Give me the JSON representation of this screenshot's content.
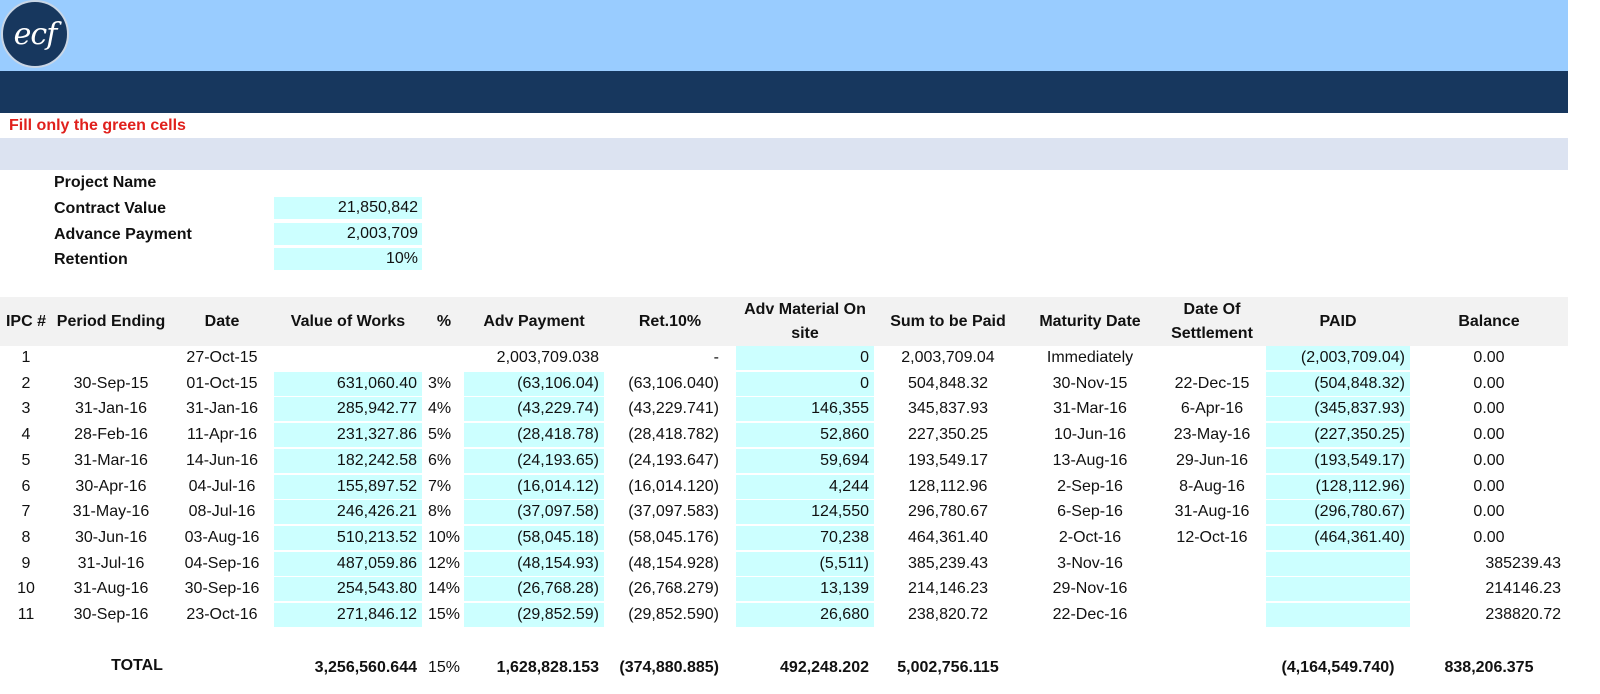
{
  "header": {
    "logo_text": "ecf"
  },
  "instruction": "Fill only the green cells",
  "project": {
    "project_name_label": "Project Name",
    "contract_value_label": "Contract Value",
    "contract_value": "21,850,842",
    "advance_payment_label": "Advance Payment",
    "advance_payment": "2,003,709",
    "retention_label": "Retention",
    "retention": "10%"
  },
  "table": {
    "headers": {
      "ipc": "IPC #",
      "period_ending": "Period Ending",
      "date": "Date",
      "value_of_works": "Value of Works",
      "pct": "%",
      "adv_payment": "Adv Payment",
      "retention": "Ret.10%",
      "adv_material": "Adv Material On site",
      "sum_to_be_paid": "Sum to be Paid",
      "maturity_date": "Maturity Date",
      "date_of_settlement": "Date Of Settlement",
      "paid": "PAID",
      "balance": "Balance"
    },
    "rows": [
      {
        "ipc": "1",
        "period": "",
        "date": "27-Oct-15",
        "value": "",
        "pct": "",
        "adv": "2,003,709.038",
        "ret": "-",
        "mat": "0",
        "sum": "2,003,709.04",
        "maturity": "Immediately",
        "settle": "",
        "paid": "(2,003,709.04)",
        "balance": "0.00"
      },
      {
        "ipc": "2",
        "period": "30-Sep-15",
        "date": "01-Oct-15",
        "value": "631,060.40",
        "pct": "3%",
        "adv": "(63,106.04)",
        "ret": "(63,106.040)",
        "mat": "0",
        "sum": "504,848.32",
        "maturity": "30-Nov-15",
        "settle": "22-Dec-15",
        "paid": "(504,848.32)",
        "balance": "0.00"
      },
      {
        "ipc": "3",
        "period": "31-Jan-16",
        "date": "31-Jan-16",
        "value": "285,942.77",
        "pct": "4%",
        "adv": "(43,229.74)",
        "ret": "(43,229.741)",
        "mat": "146,355",
        "sum": "345,837.93",
        "maturity": "31-Mar-16",
        "settle": "6-Apr-16",
        "paid": "(345,837.93)",
        "balance": "0.00"
      },
      {
        "ipc": "4",
        "period": "28-Feb-16",
        "date": "11-Apr-16",
        "value": "231,327.86",
        "pct": "5%",
        "adv": "(28,418.78)",
        "ret": "(28,418.782)",
        "mat": "52,860",
        "sum": "227,350.25",
        "maturity": "10-Jun-16",
        "settle": "23-May-16",
        "paid": "(227,350.25)",
        "balance": "0.00"
      },
      {
        "ipc": "5",
        "period": "31-Mar-16",
        "date": "14-Jun-16",
        "value": "182,242.58",
        "pct": "6%",
        "adv": "(24,193.65)",
        "ret": "(24,193.647)",
        "mat": "59,694",
        "sum": "193,549.17",
        "maturity": "13-Aug-16",
        "settle": "29-Jun-16",
        "paid": "(193,549.17)",
        "balance": "0.00"
      },
      {
        "ipc": "6",
        "period": "30-Apr-16",
        "date": "04-Jul-16",
        "value": "155,897.52",
        "pct": "7%",
        "adv": "(16,014.12)",
        "ret": "(16,014.120)",
        "mat": "4,244",
        "sum": "128,112.96",
        "maturity": "2-Sep-16",
        "settle": "8-Aug-16",
        "paid": "(128,112.96)",
        "balance": "0.00"
      },
      {
        "ipc": "7",
        "period": "31-May-16",
        "date": "08-Jul-16",
        "value": "246,426.21",
        "pct": "8%",
        "adv": "(37,097.58)",
        "ret": "(37,097.583)",
        "mat": "124,550",
        "sum": "296,780.67",
        "maturity": "6-Sep-16",
        "settle": "31-Aug-16",
        "paid": "(296,780.67)",
        "balance": "0.00"
      },
      {
        "ipc": "8",
        "period": "30-Jun-16",
        "date": "03-Aug-16",
        "value": "510,213.52",
        "pct": "10%",
        "adv": "(58,045.18)",
        "ret": "(58,045.176)",
        "mat": "70,238",
        "sum": "464,361.40",
        "maturity": "2-Oct-16",
        "settle": "12-Oct-16",
        "paid": "(464,361.40)",
        "balance": "0.00"
      },
      {
        "ipc": "9",
        "period": "31-Jul-16",
        "date": "04-Sep-16",
        "value": "487,059.86",
        "pct": "12%",
        "adv": "(48,154.93)",
        "ret": "(48,154.928)",
        "mat": "(5,511)",
        "sum": "385,239.43",
        "maturity": "3-Nov-16",
        "settle": "",
        "paid": "",
        "balance": "385239.43"
      },
      {
        "ipc": "10",
        "period": "31-Aug-16",
        "date": "30-Sep-16",
        "value": "254,543.80",
        "pct": "14%",
        "adv": "(26,768.28)",
        "ret": "(26,768.279)",
        "mat": "13,139",
        "sum": "214,146.23",
        "maturity": "29-Nov-16",
        "settle": "",
        "paid": "",
        "balance": "214146.23"
      },
      {
        "ipc": "11",
        "period": "30-Sep-16",
        "date": "23-Oct-16",
        "value": "271,846.12",
        "pct": "15%",
        "adv": "(29,852.59)",
        "ret": "(29,852.590)",
        "mat": "26,680",
        "sum": "238,820.72",
        "maturity": "22-Dec-16",
        "settle": "",
        "paid": "",
        "balance": "238820.72"
      }
    ],
    "totals": {
      "label": "TOTAL",
      "value": "3,256,560.644",
      "pct": "15%",
      "adv": "1,628,828.153",
      "ret": "(374,880.885)",
      "mat": "492,248.202",
      "sum": "5,002,756.115",
      "paid": "(4,164,549.740)",
      "balance": "838,206.375"
    }
  }
}
